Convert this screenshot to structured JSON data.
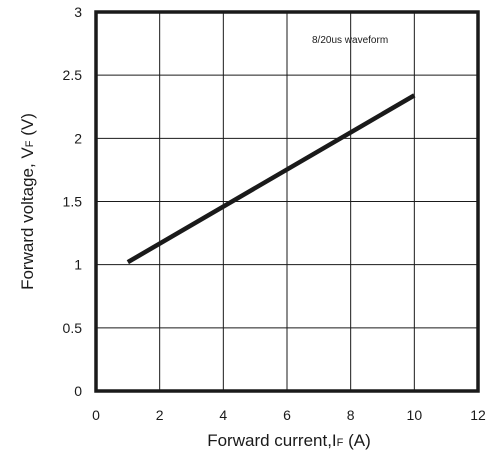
{
  "chart_data": {
    "type": "line",
    "title": "",
    "annotation": "8/20us waveform",
    "xlabel": {
      "main": "Forward current,I",
      "sub": "F",
      "unit": " (A)"
    },
    "ylabel": {
      "main": "Forward voltage, V",
      "sub": "F",
      "unit": " (V)"
    },
    "xlim": [
      0,
      12
    ],
    "ylim": [
      0,
      3
    ],
    "x_ticks": [
      "0",
      "2",
      "4",
      "6",
      "8",
      "10",
      "12"
    ],
    "y_ticks": [
      "0",
      "0.5",
      "1",
      "1.5",
      "2",
      "2.5",
      "3"
    ],
    "grid": true,
    "series": [
      {
        "x": [
          1,
          10
        ],
        "y": [
          1.02,
          2.34
        ]
      }
    ],
    "colors": {
      "line": "#1a1a1a",
      "grid": "#1a1a1a",
      "frame": "#1a1a1a"
    }
  }
}
